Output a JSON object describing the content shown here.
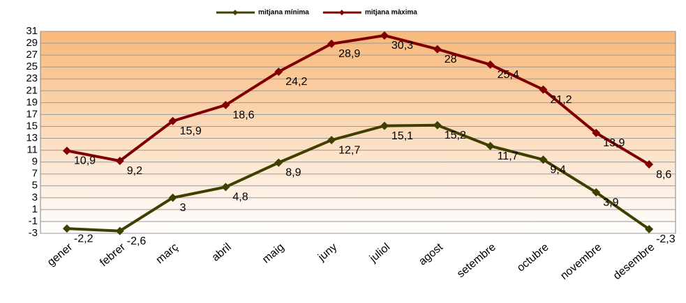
{
  "chart_data": {
    "type": "line",
    "categories": [
      "gener",
      "febrer",
      "març",
      "abril",
      "maig",
      "juny",
      "juliol",
      "agost",
      "setembre",
      "octubre",
      "novembre",
      "desembre"
    ],
    "series": [
      {
        "name": "mitjana mínima",
        "color": "#3f3f00",
        "values": [
          -2.2,
          -2.6,
          3,
          4.8,
          8.9,
          12.7,
          15.1,
          15.2,
          11.7,
          9.4,
          3.9,
          -2.3
        ],
        "value_labels": [
          "-2,2",
          "-2,6",
          "3",
          "4,8",
          "8,9",
          "12,7",
          "15,1",
          "15,2",
          "11,7",
          "9,4",
          "3,9",
          "-2,3"
        ]
      },
      {
        "name": "mitjana màxima",
        "color": "#800000",
        "values": [
          10.9,
          9.2,
          15.9,
          18.6,
          24.2,
          28.9,
          30.3,
          28,
          25.4,
          21.2,
          13.9,
          8.6
        ],
        "value_labels": [
          "10,9",
          "9,2",
          "15,9",
          "18,6",
          "24,2",
          "28,9",
          "30,3",
          "28",
          "25,4",
          "21,2",
          "13,9",
          "8,6"
        ]
      }
    ],
    "ylim": [
      -3,
      31
    ],
    "yticks": [
      -3,
      -1,
      1,
      3,
      5,
      7,
      9,
      11,
      13,
      15,
      17,
      19,
      21,
      23,
      25,
      27,
      29,
      31
    ],
    "grid": true,
    "legend": "top"
  }
}
